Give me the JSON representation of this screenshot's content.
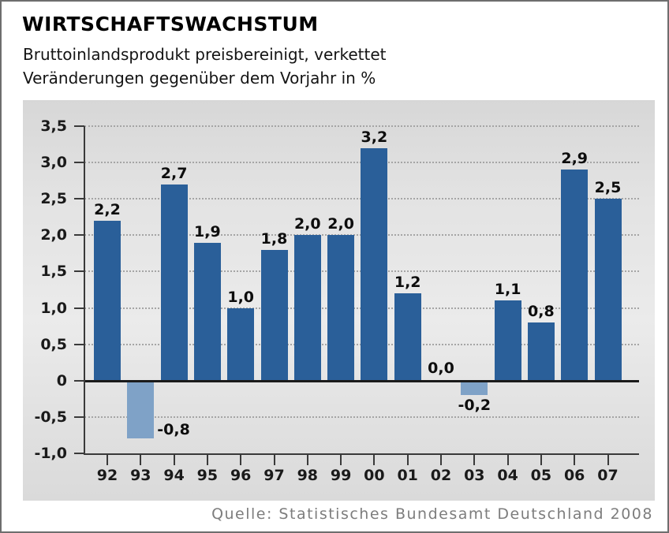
{
  "header": {
    "title": "WIRTSCHAFTSWACHSTUM",
    "subtitle_line1": "Bruttoinlandsprodukt preisbereinigt, verkettet",
    "subtitle_line2": "Veränderungen gegenüber dem Vorjahr in %"
  },
  "footer": {
    "source": "Quelle: Statistisches Bundesamt Deutschland 2008"
  },
  "chart_data": {
    "type": "bar",
    "title": "WIRTSCHAFTSWACHSTUM",
    "subtitle": "Bruttoinlandsprodukt preisbereinigt, verkettet; Veränderungen gegenüber dem Vorjahr in %",
    "categories": [
      "92",
      "93",
      "94",
      "95",
      "96",
      "97",
      "98",
      "99",
      "00",
      "01",
      "02",
      "03",
      "04",
      "05",
      "06",
      "07"
    ],
    "values": [
      2.2,
      -0.8,
      2.7,
      1.9,
      1.0,
      1.8,
      2.0,
      2.0,
      3.2,
      1.2,
      0.0,
      -0.2,
      1.1,
      0.8,
      2.9,
      2.5
    ],
    "value_labels": [
      "2,2",
      "-0,8",
      "2,7",
      "1,9",
      "1,0",
      "1,8",
      "2,0",
      "2,0",
      "3,2",
      "1,2",
      "0,0",
      "-0,2",
      "1,1",
      "0,8",
      "2,9",
      "2,5"
    ],
    "xlabel": "",
    "ylabel": "Veränderungen gegenüber dem Vorjahr in %",
    "ylim": [
      -1.0,
      3.5
    ],
    "ytick_step": 0.5,
    "ytick_labels": [
      "3,5",
      "3,0",
      "2,5",
      "2,0",
      "1,5",
      "1,0",
      "0,5",
      "0",
      "-0,5",
      "-1,0"
    ],
    "grid": "horizontal-dotted",
    "legend": "none",
    "colors": {
      "bar_positive": "#2a5f99",
      "bar_negative": "#7fa2c7",
      "panel_background": "#e0e0e0",
      "gridline": "#a5a5a5",
      "axis": "#3a3a3a",
      "zero_line": "#1b1b1b",
      "text": "#0d0d0d",
      "source_text": "#7d7d7d"
    }
  }
}
